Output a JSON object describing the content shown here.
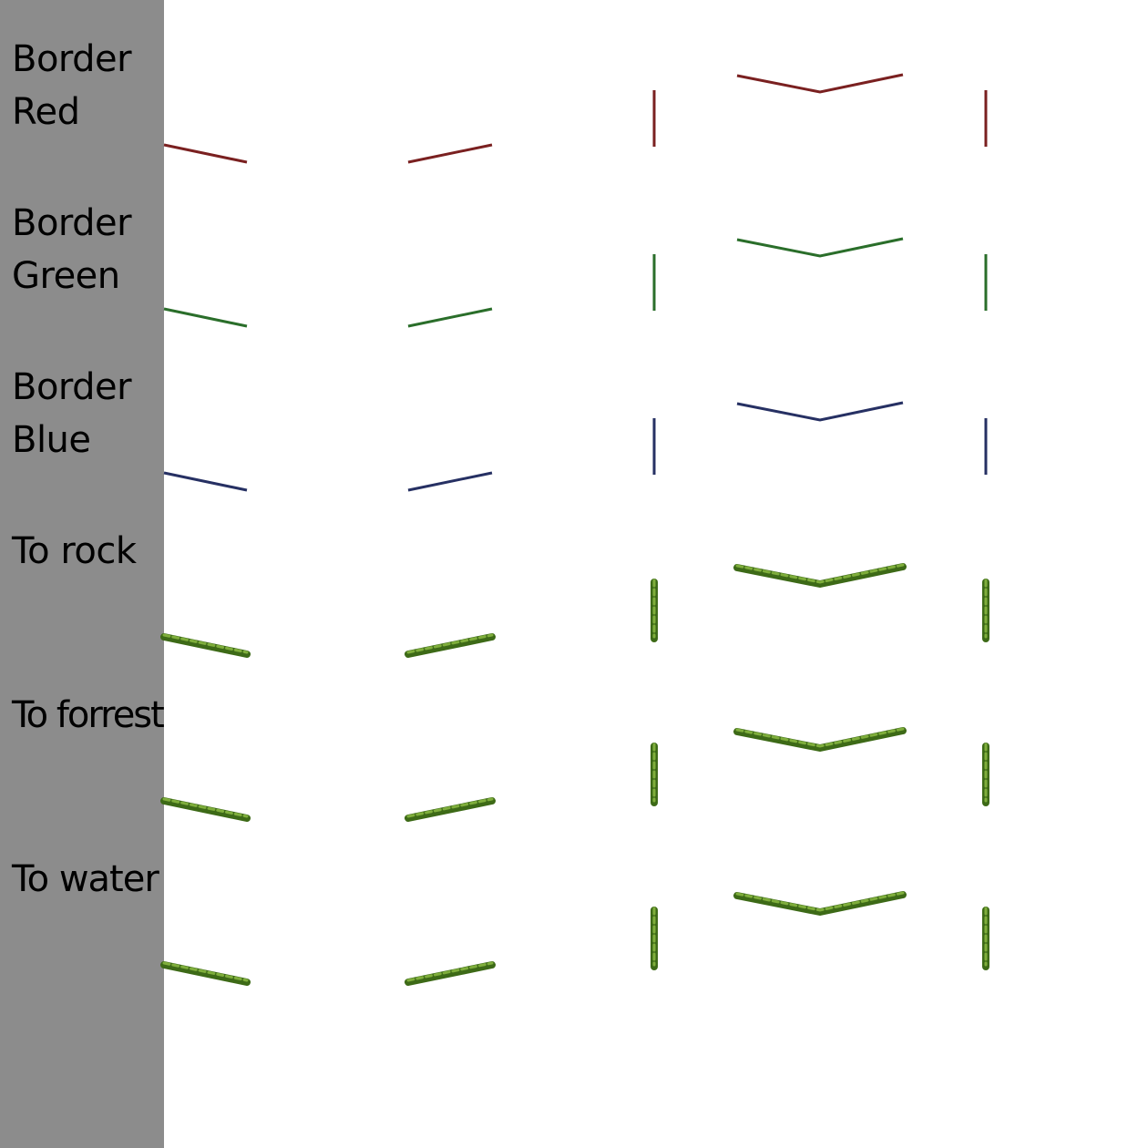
{
  "rows": [
    {
      "id": "border-red",
      "label": "Border\nRed",
      "style": "line",
      "color": "#7a2020"
    },
    {
      "id": "border-green",
      "label": "Border\nGreen",
      "style": "line",
      "color": "#2a6e2a"
    },
    {
      "id": "border-blue",
      "label": "Border\nBlue",
      "style": "line",
      "color": "#263063"
    },
    {
      "id": "to-rock",
      "label": "To rock",
      "style": "grass",
      "color": "#4a7a1e"
    },
    {
      "id": "to-forrest",
      "label": "To forrest",
      "style": "grass",
      "color": "#4a7a1e"
    },
    {
      "id": "to-water",
      "label": "To water",
      "style": "grass",
      "color": "#4a7a1e"
    }
  ],
  "colors": {
    "sidebar": "#8c8c8c",
    "background": "#ffffff",
    "grass_dark": "#3d6a17",
    "grass_light": "#7fae3c"
  }
}
